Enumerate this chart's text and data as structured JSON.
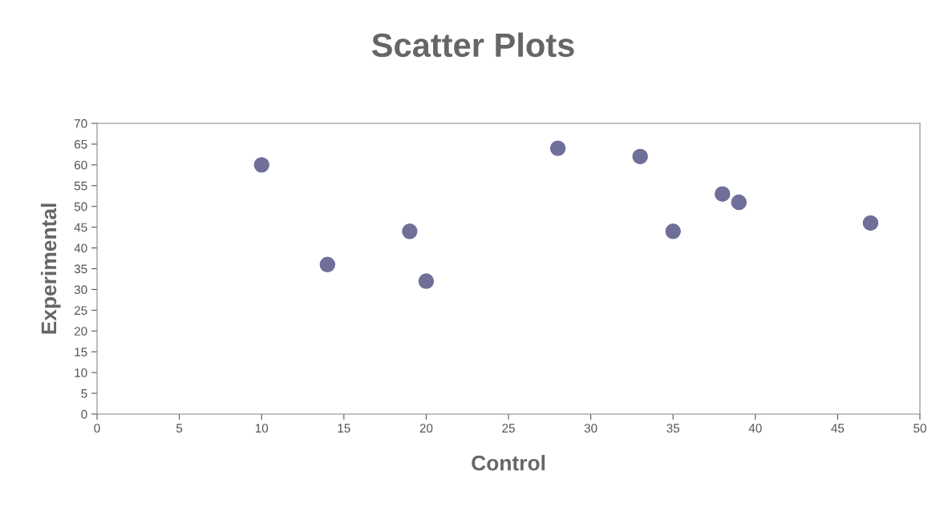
{
  "chart_data": {
    "type": "scatter",
    "title": "Scatter Plots",
    "xlabel": "Control",
    "ylabel": "Experimental",
    "x": [
      10,
      14,
      19,
      20,
      28,
      33,
      35,
      38,
      39,
      47
    ],
    "values": [
      60,
      36,
      44,
      32,
      64,
      62,
      44,
      53,
      51,
      46
    ],
    "color": "#6f6f99",
    "marker": "circle",
    "xlim": [
      0,
      50
    ],
    "xticks": [
      0,
      5,
      10,
      15,
      20,
      25,
      30,
      35,
      40,
      45,
      50
    ],
    "ylim": [
      0,
      70
    ],
    "yticks": [
      0,
      5,
      10,
      15,
      20,
      25,
      30,
      35,
      40,
      45,
      50,
      55,
      60,
      65,
      70
    ],
    "grid": false,
    "legend": false
  }
}
